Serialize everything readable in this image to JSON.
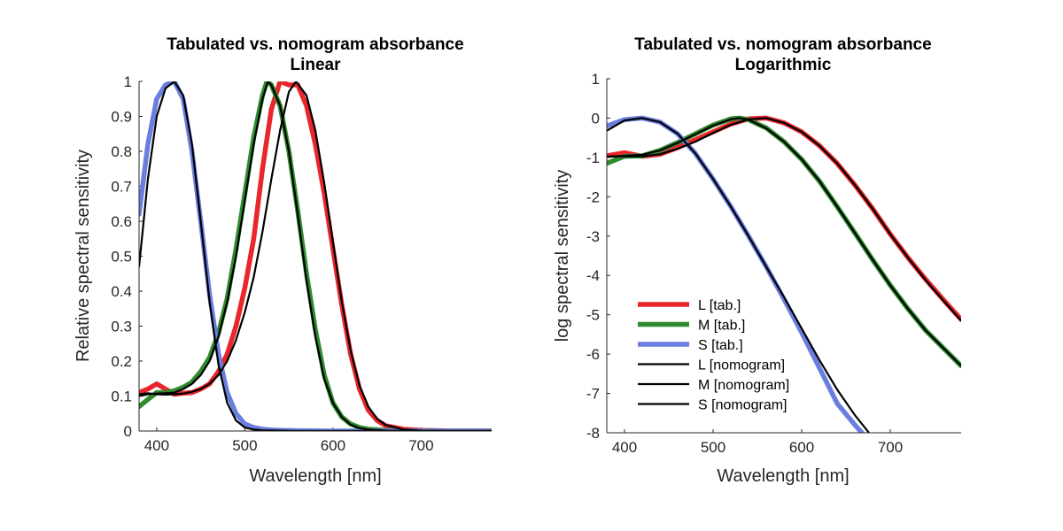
{
  "chart_data": [
    {
      "type": "line",
      "title": "Tabulated vs. nomogram absorbance",
      "subtitle": "Linear",
      "xlabel": "Wavelength [nm]",
      "ylabel": "Relative spectral sensitivity",
      "xlim": [
        380,
        780
      ],
      "ylim": [
        0,
        1
      ],
      "xticks": [
        "400",
        "500",
        "600",
        "700"
      ],
      "yticks": [
        "0",
        "0.1",
        "0.2",
        "0.3",
        "0.4",
        "0.5",
        "0.6",
        "0.7",
        "0.8",
        "0.9",
        "1"
      ],
      "grid": false,
      "series": [
        {
          "name": "L [tab.]",
          "color": "#e8262b",
          "x": [
            380,
            390,
            400,
            410,
            420,
            430,
            440,
            450,
            460,
            470,
            480,
            490,
            500,
            510,
            520,
            530,
            540,
            550,
            560,
            570,
            580,
            590,
            600,
            610,
            620,
            630,
            640,
            650,
            660,
            680,
            700,
            740,
            780
          ],
          "values": [
            0.11,
            0.12,
            0.135,
            0.12,
            0.105,
            0.108,
            0.11,
            0.12,
            0.135,
            0.17,
            0.22,
            0.3,
            0.41,
            0.55,
            0.75,
            0.92,
            1.0,
            0.99,
            0.99,
            0.93,
            0.82,
            0.68,
            0.52,
            0.36,
            0.22,
            0.12,
            0.06,
            0.03,
            0.015,
            0.005,
            0.002,
            0.0,
            0.0
          ]
        },
        {
          "name": "M [tab.]",
          "color": "#2e8b2e",
          "x": [
            380,
            390,
            400,
            410,
            420,
            430,
            440,
            450,
            460,
            470,
            480,
            490,
            500,
            510,
            520,
            525,
            530,
            540,
            550,
            560,
            570,
            580,
            590,
            600,
            610,
            620,
            630,
            640,
            660,
            680,
            700,
            740,
            780
          ],
          "values": [
            0.07,
            0.09,
            0.11,
            0.11,
            0.115,
            0.125,
            0.14,
            0.17,
            0.21,
            0.28,
            0.38,
            0.52,
            0.68,
            0.84,
            0.96,
            1.0,
            0.99,
            0.93,
            0.8,
            0.63,
            0.45,
            0.29,
            0.16,
            0.08,
            0.04,
            0.02,
            0.01,
            0.005,
            0.002,
            0.0,
            0.0,
            0.0,
            0.0
          ]
        },
        {
          "name": "S [tab.]",
          "color": "#6a7ee0",
          "x": [
            380,
            390,
            400,
            410,
            420,
            430,
            440,
            450,
            460,
            470,
            480,
            490,
            500,
            510,
            520,
            530,
            540,
            560,
            600,
            700,
            780
          ],
          "values": [
            0.62,
            0.82,
            0.95,
            0.99,
            1.0,
            0.95,
            0.8,
            0.6,
            0.39,
            0.22,
            0.11,
            0.05,
            0.02,
            0.01,
            0.005,
            0.003,
            0.002,
            0.001,
            0.0,
            0.0,
            0.0
          ]
        },
        {
          "name": "L [nomogram]",
          "color": "#000000",
          "x": [
            380,
            390,
            400,
            410,
            420,
            430,
            440,
            450,
            460,
            470,
            480,
            490,
            500,
            510,
            520,
            530,
            540,
            550,
            558,
            570,
            580,
            590,
            600,
            610,
            620,
            630,
            640,
            650,
            660,
            680,
            700,
            740,
            780
          ],
          "values": [
            0.105,
            0.108,
            0.105,
            0.104,
            0.105,
            0.107,
            0.112,
            0.12,
            0.135,
            0.16,
            0.2,
            0.26,
            0.34,
            0.44,
            0.57,
            0.72,
            0.86,
            0.97,
            1.0,
            0.96,
            0.86,
            0.71,
            0.54,
            0.37,
            0.23,
            0.13,
            0.07,
            0.035,
            0.017,
            0.004,
            0.001,
            0.0,
            0.0
          ]
        },
        {
          "name": "M [nomogram]",
          "color": "#000000",
          "x": [
            380,
            390,
            400,
            410,
            420,
            430,
            440,
            450,
            460,
            470,
            480,
            490,
            500,
            510,
            520,
            526,
            530,
            540,
            550,
            560,
            570,
            580,
            590,
            600,
            610,
            620,
            630,
            640,
            660,
            680,
            700,
            740,
            780
          ],
          "values": [
            0.1,
            0.105,
            0.107,
            0.108,
            0.11,
            0.12,
            0.135,
            0.16,
            0.2,
            0.27,
            0.37,
            0.5,
            0.66,
            0.82,
            0.95,
            1.0,
            0.99,
            0.93,
            0.8,
            0.62,
            0.43,
            0.27,
            0.15,
            0.08,
            0.04,
            0.018,
            0.008,
            0.004,
            0.001,
            0.0,
            0.0,
            0.0,
            0.0
          ]
        },
        {
          "name": "S [nomogram]",
          "color": "#000000",
          "x": [
            380,
            390,
            400,
            410,
            420,
            430,
            440,
            450,
            460,
            470,
            480,
            490,
            500,
            510,
            520,
            540,
            560,
            600,
            700,
            780
          ],
          "values": [
            0.47,
            0.72,
            0.9,
            0.98,
            1.0,
            0.96,
            0.82,
            0.6,
            0.37,
            0.19,
            0.08,
            0.03,
            0.01,
            0.004,
            0.002,
            0.001,
            0.0,
            0.0,
            0.0,
            0.0
          ]
        }
      ]
    },
    {
      "type": "line",
      "title": "Tabulated vs. nomogram absorbance",
      "subtitle": "Logarithmic",
      "xlabel": "Wavelength [nm]",
      "ylabel": "log spectral sensitivity",
      "xlim": [
        380,
        780
      ],
      "ylim": [
        -8,
        1
      ],
      "xticks": [
        "400",
        "500",
        "600",
        "700"
      ],
      "yticks": [
        "-8",
        "-7",
        "-6",
        "-5",
        "-4",
        "-3",
        "-2",
        "-1",
        "0",
        "1"
      ],
      "grid": false,
      "legend": {
        "position": "lower-left"
      },
      "series": [
        {
          "name": "L [tab.]",
          "color": "#e8262b",
          "x": [
            380,
            400,
            420,
            440,
            460,
            480,
            500,
            520,
            540,
            560,
            580,
            600,
            620,
            640,
            660,
            680,
            700,
            720,
            740,
            760,
            780
          ],
          "values": [
            -0.96,
            -0.88,
            -0.97,
            -0.92,
            -0.75,
            -0.55,
            -0.35,
            -0.15,
            -0.02,
            0.0,
            -0.12,
            -0.35,
            -0.7,
            -1.15,
            -1.7,
            -2.3,
            -2.95,
            -3.55,
            -4.1,
            -4.62,
            -5.12
          ]
        },
        {
          "name": "M [tab.]",
          "color": "#2e8b2e",
          "x": [
            380,
            400,
            420,
            440,
            460,
            480,
            500,
            520,
            530,
            540,
            560,
            580,
            600,
            620,
            640,
            660,
            680,
            700,
            720,
            740,
            760,
            780
          ],
          "values": [
            -1.15,
            -0.97,
            -0.96,
            -0.82,
            -0.62,
            -0.4,
            -0.18,
            -0.02,
            0.0,
            -0.04,
            -0.25,
            -0.6,
            -1.05,
            -1.6,
            -2.25,
            -2.92,
            -3.6,
            -4.25,
            -4.85,
            -5.4,
            -5.85,
            -6.3
          ]
        },
        {
          "name": "S [tab.]",
          "color": "#6a7ee0",
          "x": [
            380,
            400,
            420,
            440,
            460,
            480,
            500,
            520,
            540,
            560,
            580,
            600,
            620,
            640,
            660,
            668
          ],
          "values": [
            -0.2,
            -0.04,
            0.0,
            -0.1,
            -0.4,
            -0.9,
            -1.55,
            -2.25,
            -3.0,
            -3.78,
            -4.6,
            -5.45,
            -6.35,
            -7.25,
            -7.8,
            -8.0
          ]
        },
        {
          "name": "L [nomogram]",
          "color": "#000000",
          "x": [
            380,
            400,
            420,
            440,
            460,
            480,
            500,
            520,
            540,
            560,
            580,
            600,
            620,
            640,
            660,
            680,
            700,
            720,
            740,
            760,
            780
          ],
          "values": [
            -0.98,
            -0.97,
            -0.97,
            -0.92,
            -0.78,
            -0.6,
            -0.38,
            -0.17,
            -0.03,
            0.0,
            -0.12,
            -0.35,
            -0.7,
            -1.15,
            -1.7,
            -2.3,
            -2.95,
            -3.55,
            -4.12,
            -4.64,
            -5.15
          ]
        },
        {
          "name": "M [nomogram]",
          "color": "#000000",
          "x": [
            380,
            400,
            420,
            440,
            460,
            480,
            500,
            520,
            530,
            540,
            560,
            580,
            600,
            620,
            640,
            660,
            680,
            700,
            720,
            740,
            760,
            780
          ],
          "values": [
            -0.98,
            -0.96,
            -0.93,
            -0.82,
            -0.63,
            -0.41,
            -0.19,
            -0.03,
            0.0,
            -0.04,
            -0.26,
            -0.6,
            -1.05,
            -1.6,
            -2.25,
            -2.92,
            -3.6,
            -4.25,
            -4.85,
            -5.4,
            -5.85,
            -6.3
          ]
        },
        {
          "name": "S [nomogram]",
          "color": "#000000",
          "x": [
            380,
            400,
            420,
            440,
            460,
            480,
            500,
            520,
            540,
            560,
            580,
            600,
            620,
            640,
            660,
            676
          ],
          "values": [
            -0.32,
            -0.06,
            0.0,
            -0.1,
            -0.4,
            -0.9,
            -1.55,
            -2.25,
            -3.0,
            -3.78,
            -4.55,
            -5.35,
            -6.15,
            -6.9,
            -7.55,
            -8.0
          ]
        }
      ]
    }
  ]
}
